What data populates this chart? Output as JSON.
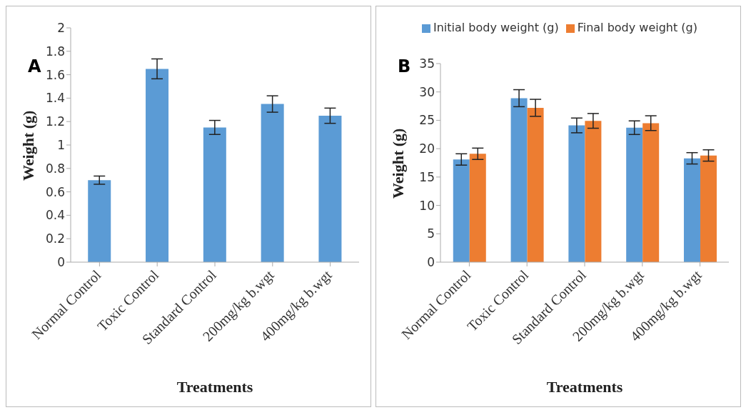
{
  "chart_data": [
    {
      "type": "bar",
      "title": "A",
      "categories": [
        "Normal Control",
        "Toxic Control",
        "Standard Control",
        "200mg/kg b.wgt",
        "400mg/kg b.wgt"
      ],
      "xlabel": "Treatments",
      "ylabel": "Weight  (g)",
      "series": [
        {
          "color": "#5b9bd5",
          "values": [
            0.7,
            1.65,
            1.15,
            1.35,
            1.25
          ],
          "errors": [
            0.035,
            0.085,
            0.06,
            0.07,
            0.065
          ]
        }
      ],
      "ylim": [
        0,
        2
      ],
      "yticks": [
        0,
        0.2,
        0.4,
        0.6,
        0.8,
        1,
        1.2,
        1.4,
        1.6,
        1.8,
        2
      ],
      "grid": false,
      "legend": false
    },
    {
      "type": "bar",
      "title": "B",
      "categories": [
        "Normal Control",
        "Toxic Control",
        "Standard Control",
        "200mg/kg b.wgt",
        "400mg/kg b.wgt"
      ],
      "xlabel": "Treatments",
      "ylabel": "Weight (g)",
      "series": [
        {
          "name": "Initial body weight (g)",
          "color": "#5b9bd5",
          "values": [
            18.1,
            28.9,
            24.1,
            23.7,
            18.3
          ],
          "errors": [
            1,
            1.5,
            1.3,
            1.2,
            1
          ]
        },
        {
          "name": "Final body weight (g)",
          "color": "#ed7d31",
          "values": [
            19.1,
            27.2,
            24.9,
            24.5,
            18.8
          ],
          "errors": [
            1,
            1.5,
            1.3,
            1.3,
            1
          ]
        }
      ],
      "ylim": [
        0,
        35
      ],
      "yticks": [
        0,
        5,
        10,
        15,
        20,
        25,
        30,
        35
      ],
      "grid": false,
      "legend": "top"
    }
  ]
}
